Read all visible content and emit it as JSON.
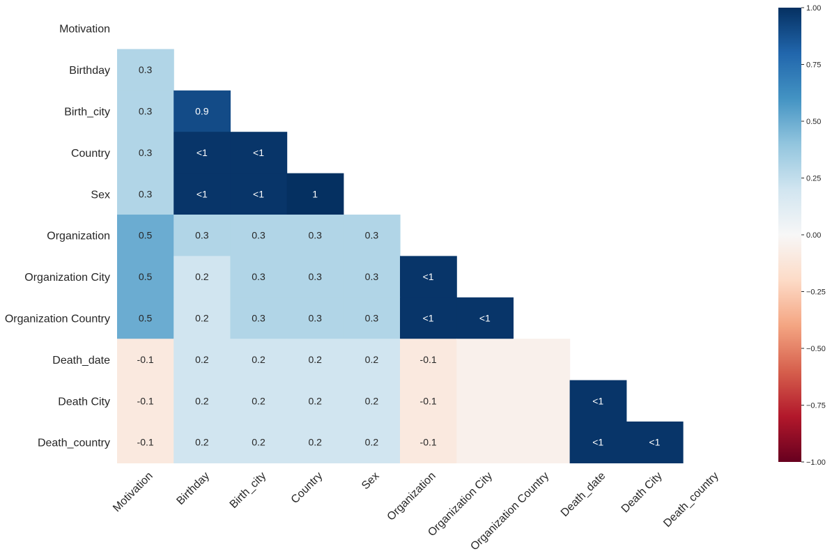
{
  "chart_data": {
    "type": "heatmap",
    "title": "",
    "xlabel": "",
    "ylabel": "",
    "rows": [
      "Motivation",
      "Birthday",
      "Birth_city",
      "Country",
      "Sex",
      "Organization",
      "Organization City",
      "Organization Country",
      "Death_date",
      "Death City",
      "Death_country"
    ],
    "columns": [
      "Motivation",
      "Birthday",
      "Birth_city",
      "Country",
      "Sex",
      "Organization",
      "Organization City",
      "Organization Country",
      "Death_date",
      "Death City",
      "Death_country"
    ],
    "values": [
      [
        null,
        null,
        null,
        null,
        null,
        null,
        null,
        null,
        null,
        null,
        null
      ],
      [
        0.3,
        null,
        null,
        null,
        null,
        null,
        null,
        null,
        null,
        null,
        null
      ],
      [
        0.3,
        0.9,
        null,
        null,
        null,
        null,
        null,
        null,
        null,
        null,
        null
      ],
      [
        0.3,
        0.98,
        0.98,
        null,
        null,
        null,
        null,
        null,
        null,
        null,
        null
      ],
      [
        0.3,
        0.98,
        0.98,
        1.0,
        null,
        null,
        null,
        null,
        null,
        null,
        null
      ],
      [
        0.5,
        0.3,
        0.3,
        0.3,
        0.3,
        null,
        null,
        null,
        null,
        null,
        null
      ],
      [
        0.5,
        0.2,
        0.3,
        0.3,
        0.3,
        0.98,
        null,
        null,
        null,
        null,
        null
      ],
      [
        0.5,
        0.2,
        0.3,
        0.3,
        0.3,
        0.98,
        0.98,
        null,
        null,
        null,
        null
      ],
      [
        -0.1,
        0.2,
        0.2,
        0.2,
        0.2,
        -0.1,
        -0.05,
        -0.05,
        null,
        null,
        null
      ],
      [
        -0.1,
        0.2,
        0.2,
        0.2,
        0.2,
        -0.1,
        -0.05,
        -0.05,
        0.98,
        null,
        null
      ],
      [
        -0.1,
        0.2,
        0.2,
        0.2,
        0.2,
        -0.1,
        -0.05,
        -0.05,
        0.98,
        0.98,
        null
      ]
    ],
    "labels": [
      [
        "",
        "",
        "",
        "",
        "",
        "",
        "",
        "",
        "",
        "",
        ""
      ],
      [
        "0.3",
        "",
        "",
        "",
        "",
        "",
        "",
        "",
        "",
        "",
        ""
      ],
      [
        "0.3",
        "0.9",
        "",
        "",
        "",
        "",
        "",
        "",
        "",
        "",
        ""
      ],
      [
        "0.3",
        "<1",
        "<1",
        "",
        "",
        "",
        "",
        "",
        "",
        "",
        ""
      ],
      [
        "0.3",
        "<1",
        "<1",
        "1",
        "",
        "",
        "",
        "",
        "",
        "",
        ""
      ],
      [
        "0.5",
        "0.3",
        "0.3",
        "0.3",
        "0.3",
        "",
        "",
        "",
        "",
        "",
        ""
      ],
      [
        "0.5",
        "0.2",
        "0.3",
        "0.3",
        "0.3",
        "<1",
        "",
        "",
        "",
        "",
        ""
      ],
      [
        "0.5",
        "0.2",
        "0.3",
        "0.3",
        "0.3",
        "<1",
        "<1",
        "",
        "",
        "",
        ""
      ],
      [
        "-0.1",
        "0.2",
        "0.2",
        "0.2",
        "0.2",
        "-0.1",
        "",
        "",
        "",
        "",
        ""
      ],
      [
        "-0.1",
        "0.2",
        "0.2",
        "0.2",
        "0.2",
        "-0.1",
        "",
        "",
        "<1",
        "",
        ""
      ],
      [
        "-0.1",
        "0.2",
        "0.2",
        "0.2",
        "0.2",
        "-0.1",
        "",
        "",
        "<1",
        "<1",
        ""
      ]
    ],
    "colorbar": {
      "range": [
        -1.0,
        1.0
      ],
      "ticks": [
        1.0,
        0.75,
        0.5,
        0.25,
        0.0,
        -0.25,
        -0.5,
        -0.75,
        -1.0
      ],
      "tick_labels": [
        "1.00",
        "0.75",
        "0.50",
        "0.25",
        "0.00",
        "−0.25",
        "−0.50",
        "−0.75",
        "−1.00"
      ]
    },
    "colormap": "RdBu",
    "grid": false
  }
}
